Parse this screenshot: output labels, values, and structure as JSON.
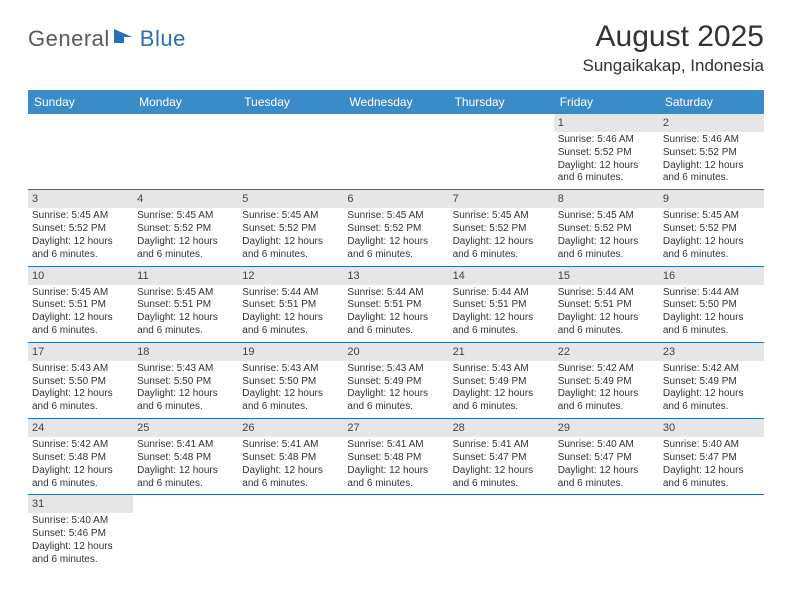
{
  "logo": {
    "word1": "General",
    "word2": "Blue",
    "color1": "#5a5a5a",
    "color2": "#2b6fad"
  },
  "title": "August 2025",
  "location": "Sungaikakap, Indonesia",
  "colors": {
    "header_bg": "#3b8bc8",
    "header_text": "#ffffff",
    "rule": "#2b6fad",
    "daynum_bg": "#e6e6e6",
    "body_text": "#333333"
  },
  "weekdays": [
    "Sunday",
    "Monday",
    "Tuesday",
    "Wednesday",
    "Thursday",
    "Friday",
    "Saturday"
  ],
  "weeks": [
    [
      {
        "empty": true
      },
      {
        "empty": true
      },
      {
        "empty": true
      },
      {
        "empty": true
      },
      {
        "empty": true
      },
      {
        "day": 1,
        "sunrise": "5:46 AM",
        "sunset": "5:52 PM",
        "daylight": "12 hours and 6 minutes."
      },
      {
        "day": 2,
        "sunrise": "5:46 AM",
        "sunset": "5:52 PM",
        "daylight": "12 hours and 6 minutes."
      }
    ],
    [
      {
        "day": 3,
        "sunrise": "5:45 AM",
        "sunset": "5:52 PM",
        "daylight": "12 hours and 6 minutes."
      },
      {
        "day": 4,
        "sunrise": "5:45 AM",
        "sunset": "5:52 PM",
        "daylight": "12 hours and 6 minutes."
      },
      {
        "day": 5,
        "sunrise": "5:45 AM",
        "sunset": "5:52 PM",
        "daylight": "12 hours and 6 minutes."
      },
      {
        "day": 6,
        "sunrise": "5:45 AM",
        "sunset": "5:52 PM",
        "daylight": "12 hours and 6 minutes."
      },
      {
        "day": 7,
        "sunrise": "5:45 AM",
        "sunset": "5:52 PM",
        "daylight": "12 hours and 6 minutes."
      },
      {
        "day": 8,
        "sunrise": "5:45 AM",
        "sunset": "5:52 PM",
        "daylight": "12 hours and 6 minutes."
      },
      {
        "day": 9,
        "sunrise": "5:45 AM",
        "sunset": "5:52 PM",
        "daylight": "12 hours and 6 minutes."
      }
    ],
    [
      {
        "day": 10,
        "sunrise": "5:45 AM",
        "sunset": "5:51 PM",
        "daylight": "12 hours and 6 minutes."
      },
      {
        "day": 11,
        "sunrise": "5:45 AM",
        "sunset": "5:51 PM",
        "daylight": "12 hours and 6 minutes."
      },
      {
        "day": 12,
        "sunrise": "5:44 AM",
        "sunset": "5:51 PM",
        "daylight": "12 hours and 6 minutes."
      },
      {
        "day": 13,
        "sunrise": "5:44 AM",
        "sunset": "5:51 PM",
        "daylight": "12 hours and 6 minutes."
      },
      {
        "day": 14,
        "sunrise": "5:44 AM",
        "sunset": "5:51 PM",
        "daylight": "12 hours and 6 minutes."
      },
      {
        "day": 15,
        "sunrise": "5:44 AM",
        "sunset": "5:51 PM",
        "daylight": "12 hours and 6 minutes."
      },
      {
        "day": 16,
        "sunrise": "5:44 AM",
        "sunset": "5:50 PM",
        "daylight": "12 hours and 6 minutes."
      }
    ],
    [
      {
        "day": 17,
        "sunrise": "5:43 AM",
        "sunset": "5:50 PM",
        "daylight": "12 hours and 6 minutes."
      },
      {
        "day": 18,
        "sunrise": "5:43 AM",
        "sunset": "5:50 PM",
        "daylight": "12 hours and 6 minutes."
      },
      {
        "day": 19,
        "sunrise": "5:43 AM",
        "sunset": "5:50 PM",
        "daylight": "12 hours and 6 minutes."
      },
      {
        "day": 20,
        "sunrise": "5:43 AM",
        "sunset": "5:49 PM",
        "daylight": "12 hours and 6 minutes."
      },
      {
        "day": 21,
        "sunrise": "5:43 AM",
        "sunset": "5:49 PM",
        "daylight": "12 hours and 6 minutes."
      },
      {
        "day": 22,
        "sunrise": "5:42 AM",
        "sunset": "5:49 PM",
        "daylight": "12 hours and 6 minutes."
      },
      {
        "day": 23,
        "sunrise": "5:42 AM",
        "sunset": "5:49 PM",
        "daylight": "12 hours and 6 minutes."
      }
    ],
    [
      {
        "day": 24,
        "sunrise": "5:42 AM",
        "sunset": "5:48 PM",
        "daylight": "12 hours and 6 minutes."
      },
      {
        "day": 25,
        "sunrise": "5:41 AM",
        "sunset": "5:48 PM",
        "daylight": "12 hours and 6 minutes."
      },
      {
        "day": 26,
        "sunrise": "5:41 AM",
        "sunset": "5:48 PM",
        "daylight": "12 hours and 6 minutes."
      },
      {
        "day": 27,
        "sunrise": "5:41 AM",
        "sunset": "5:48 PM",
        "daylight": "12 hours and 6 minutes."
      },
      {
        "day": 28,
        "sunrise": "5:41 AM",
        "sunset": "5:47 PM",
        "daylight": "12 hours and 6 minutes."
      },
      {
        "day": 29,
        "sunrise": "5:40 AM",
        "sunset": "5:47 PM",
        "daylight": "12 hours and 6 minutes."
      },
      {
        "day": 30,
        "sunrise": "5:40 AM",
        "sunset": "5:47 PM",
        "daylight": "12 hours and 6 minutes."
      }
    ],
    [
      {
        "day": 31,
        "sunrise": "5:40 AM",
        "sunset": "5:46 PM",
        "daylight": "12 hours and 6 minutes."
      },
      {
        "empty": true
      },
      {
        "empty": true
      },
      {
        "empty": true
      },
      {
        "empty": true
      },
      {
        "empty": true
      },
      {
        "empty": true
      }
    ]
  ],
  "labels": {
    "sunrise": "Sunrise: ",
    "sunset": "Sunset: ",
    "daylight": "Daylight: "
  }
}
